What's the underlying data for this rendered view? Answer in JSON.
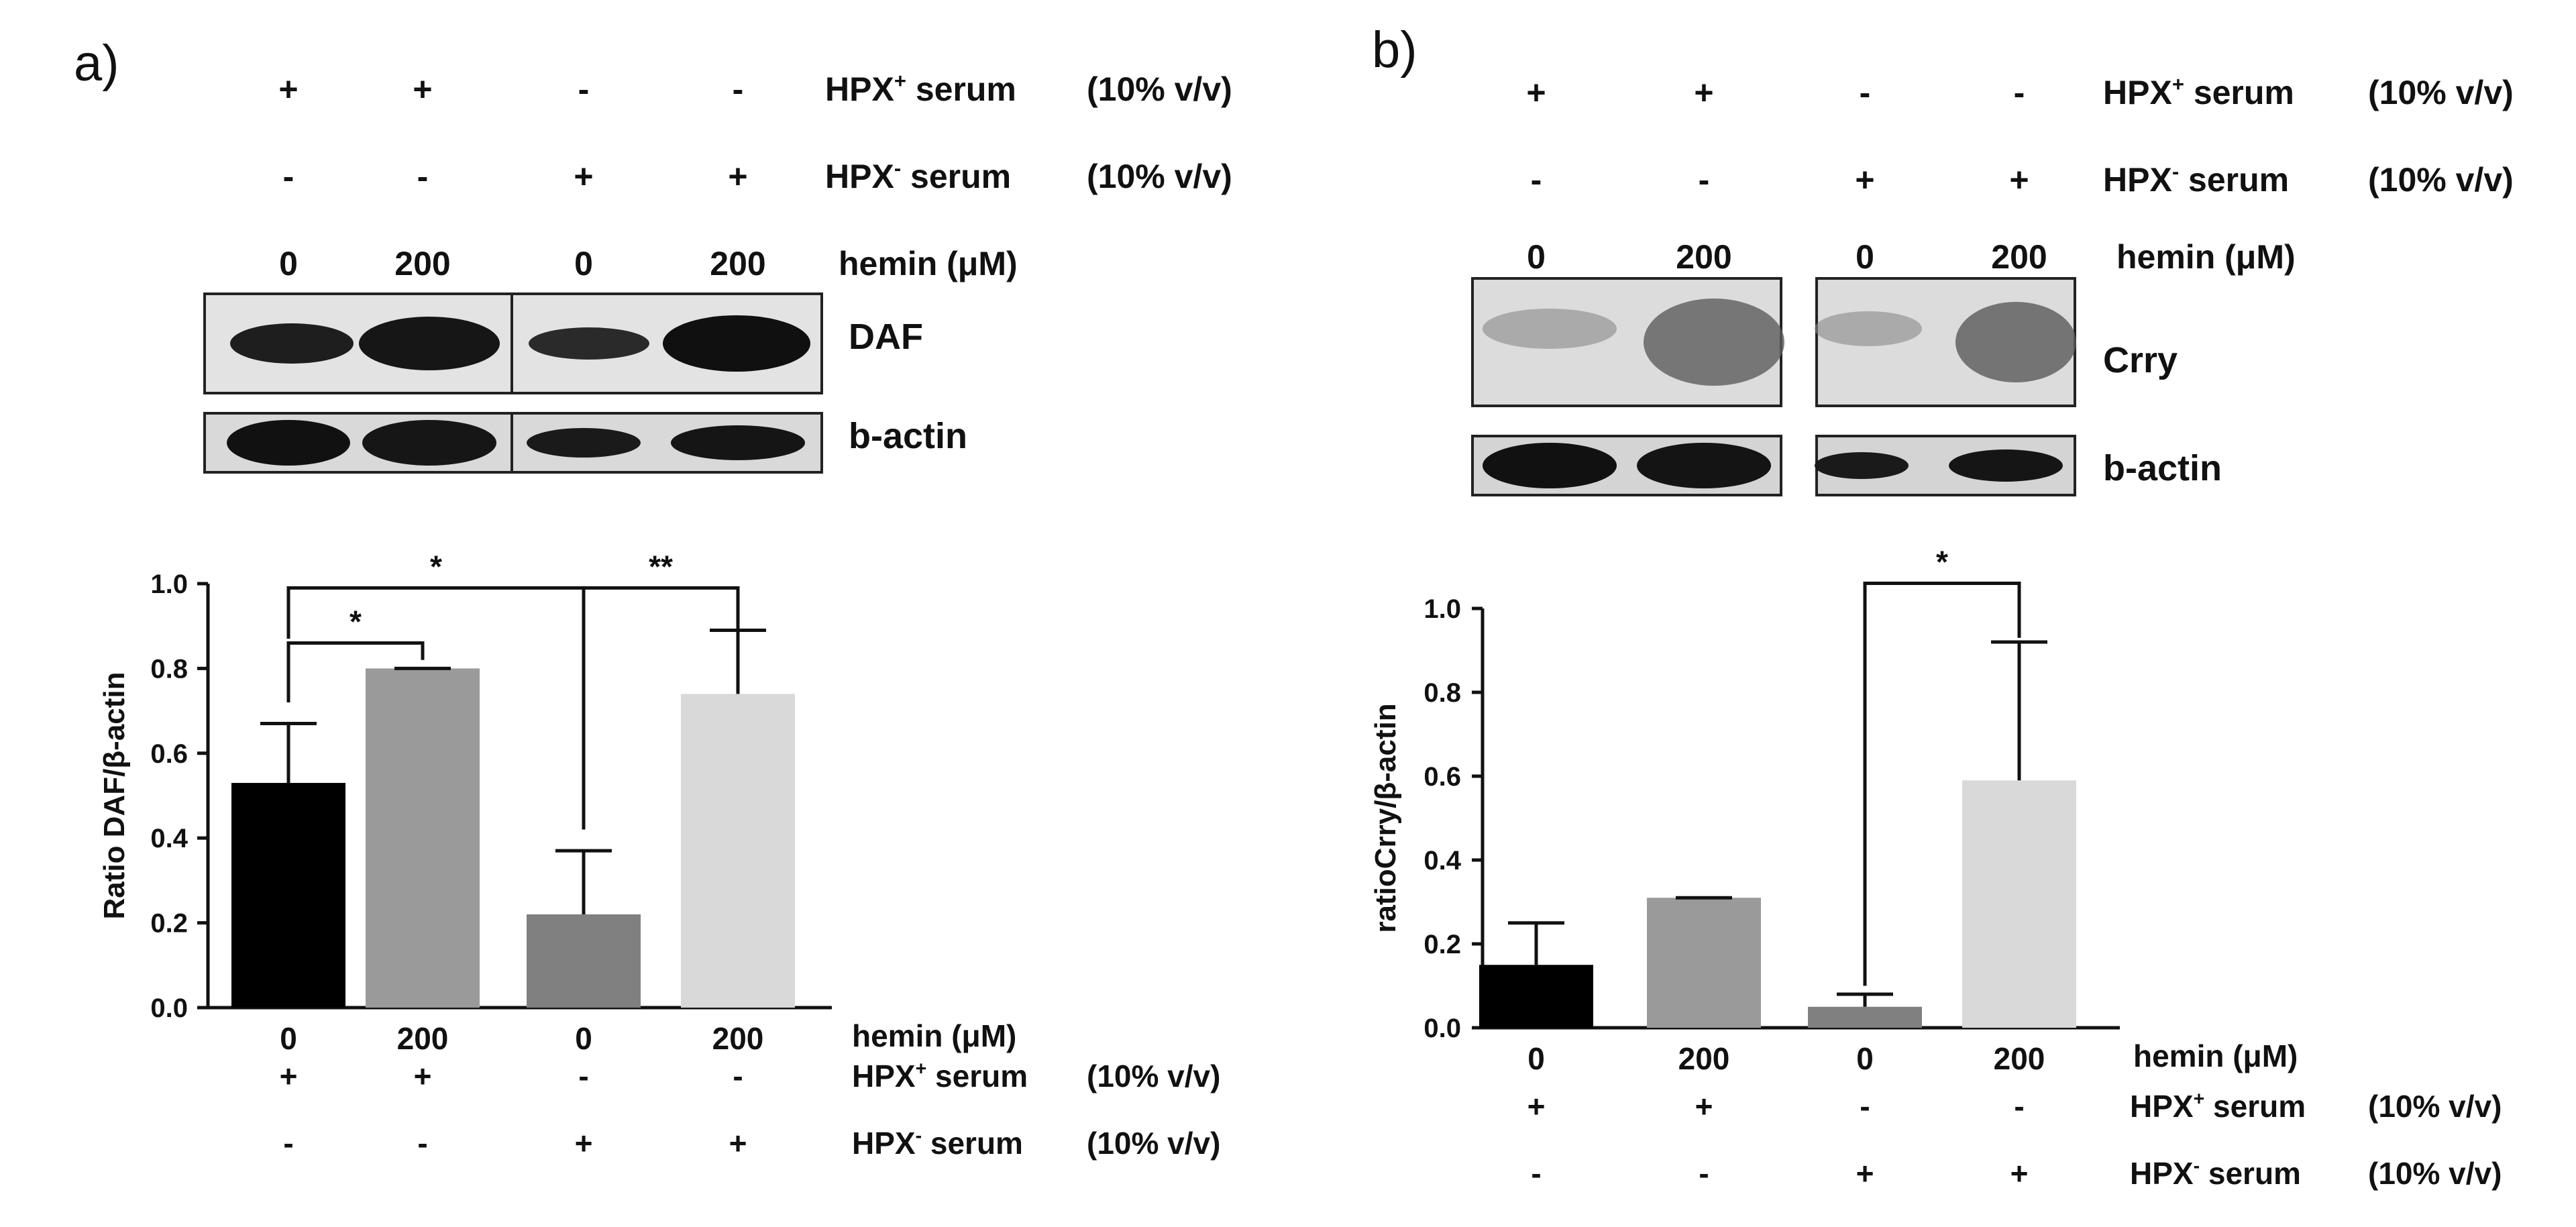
{
  "panels": [
    {
      "id": "a",
      "panel_label": "a)",
      "header_rows": [
        {
          "signs": [
            "+",
            "+",
            "-",
            "-"
          ],
          "label": "HPX",
          "sup": "+",
          "suffix": " serum",
          "conc": "(10% v/v)"
        },
        {
          "signs": [
            "-",
            "-",
            "+",
            "+"
          ],
          "label": "HPX",
          "sup": "-",
          "suffix": " serum",
          "conc": "(10% v/v)"
        }
      ],
      "hemin_values": [
        "0",
        "200",
        "0",
        "200"
      ],
      "hemin_label": "hemin (μM)",
      "blot_labels": [
        "DAF",
        "b-actin"
      ],
      "footer_rows": [
        {
          "signs": [
            "+",
            "+",
            "-",
            "-"
          ],
          "label": "HPX",
          "sup": "+",
          "suffix": " serum",
          "conc": "(10% v/v)"
        },
        {
          "signs": [
            "-",
            "-",
            "+",
            "+"
          ],
          "label": "HPX",
          "sup": "-",
          "suffix": " serum",
          "conc": "(10% v/v)"
        }
      ],
      "significance": [
        {
          "from": 0,
          "to": 1,
          "label": "*"
        },
        {
          "from": 0,
          "to": 2,
          "label": "*"
        },
        {
          "from": 2,
          "to": 3,
          "label": "**"
        }
      ]
    },
    {
      "id": "b",
      "panel_label": "b)",
      "header_rows": [
        {
          "signs": [
            "+",
            "+",
            "-",
            "-"
          ],
          "label": "HPX",
          "sup": "+",
          "suffix": " serum",
          "conc": "(10% v/v)"
        },
        {
          "signs": [
            "-",
            "-",
            "+",
            "+"
          ],
          "label": "HPX",
          "sup": "-",
          "suffix": " serum",
          "conc": "(10% v/v)"
        }
      ],
      "hemin_values": [
        "0",
        "200",
        "0",
        "200"
      ],
      "hemin_label": "hemin (μM)",
      "blot_labels": [
        "Crry",
        "b-actin"
      ],
      "footer_rows": [
        {
          "signs": [
            "+",
            "+",
            "-",
            "-"
          ],
          "label": "HPX",
          "sup": "+",
          "suffix": " serum",
          "conc": "(10% v/v)"
        },
        {
          "signs": [
            "-",
            "-",
            "+",
            "+"
          ],
          "label": "HPX",
          "sup": "-",
          "suffix": " serum",
          "conc": "(10% v/v)"
        }
      ],
      "significance": [
        {
          "from": 2,
          "to": 3,
          "label": "*"
        }
      ]
    }
  ],
  "chart_data": [
    {
      "type": "bar",
      "title": "",
      "categories": [
        "0",
        "200",
        "0",
        "200"
      ],
      "values": [
        0.53,
        0.8,
        0.22,
        0.74
      ],
      "errors": [
        0.14,
        0.0,
        0.15,
        0.15
      ],
      "colors": [
        "#000000",
        "#9a9a9a",
        "#808080",
        "#d9d9d9"
      ],
      "xlabel": "hemin (μM)",
      "ylabel": "Ratio DAF/β-actin",
      "ylim": [
        0,
        1.0
      ],
      "yticks": [
        "0.0",
        "0.2",
        "0.4",
        "0.6",
        "0.8",
        "1.0"
      ],
      "grid": false
    },
    {
      "type": "bar",
      "title": "",
      "categories": [
        "0",
        "200",
        "0",
        "200"
      ],
      "values": [
        0.15,
        0.31,
        0.05,
        0.59
      ],
      "errors": [
        0.1,
        0.0,
        0.03,
        0.33
      ],
      "colors": [
        "#000000",
        "#9a9a9a",
        "#808080",
        "#d9d9d9"
      ],
      "xlabel": "hemin (μM)",
      "ylabel": "ratioCrry/β-actin",
      "ylim": [
        0,
        1.0
      ],
      "yticks": [
        "0.0",
        "0.2",
        "0.4",
        "0.6",
        "0.8",
        "1.0"
      ],
      "grid": false
    }
  ]
}
